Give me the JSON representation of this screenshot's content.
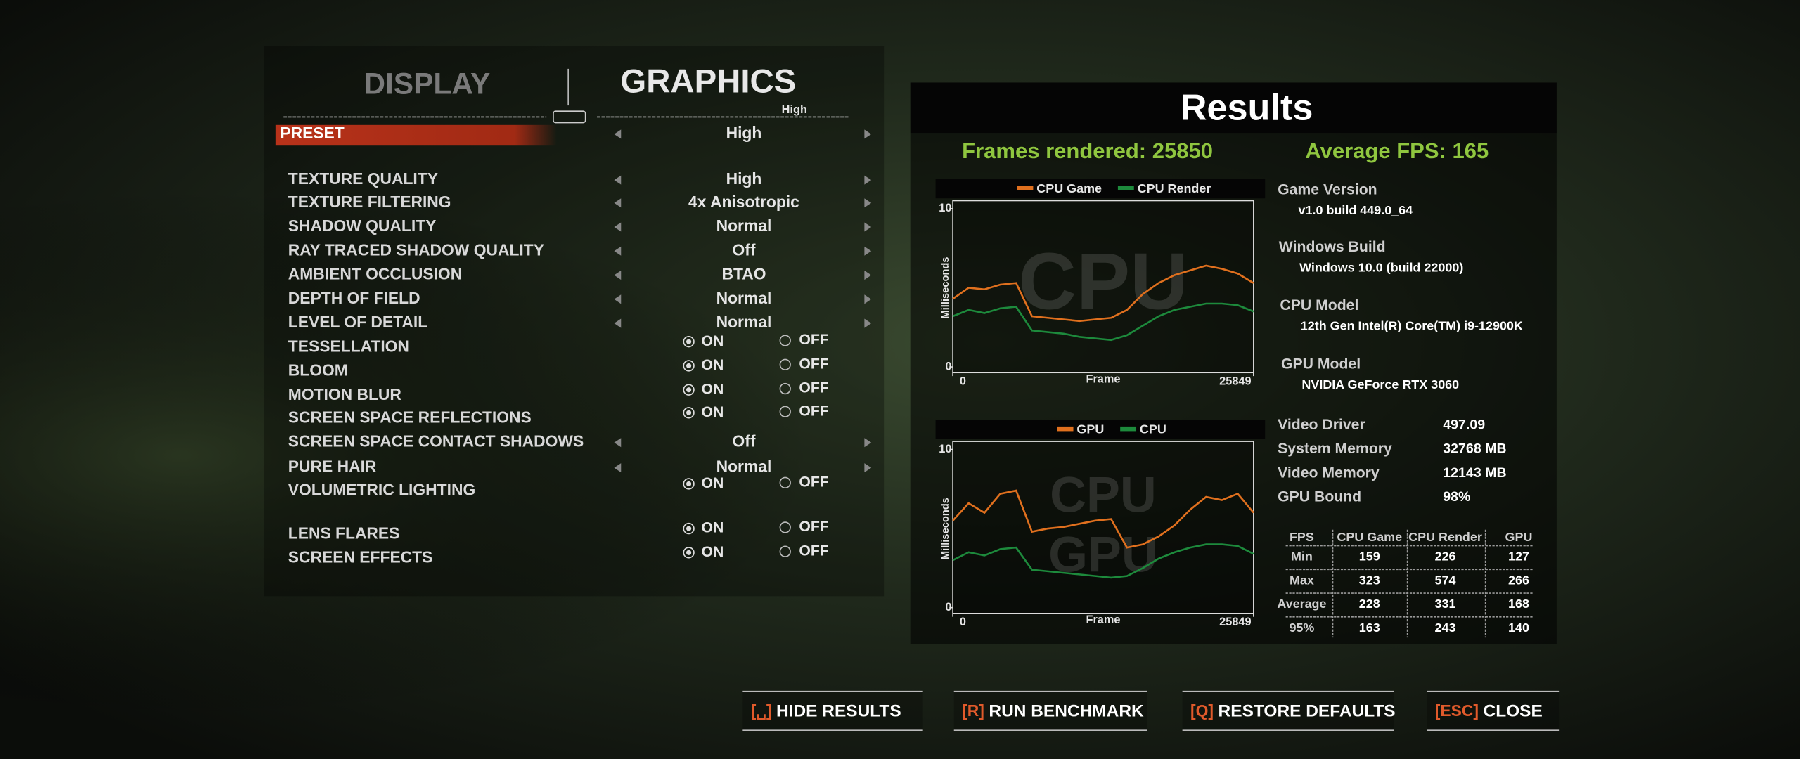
{
  "tabs": {
    "display": "DISPLAY",
    "graphics": "GRAPHICS",
    "graphics_preset": "High"
  },
  "settings": [
    {
      "label": "PRESET",
      "value": "High"
    },
    {
      "label": "TEXTURE QUALITY",
      "value": "High"
    },
    {
      "label": "TEXTURE FILTERING",
      "value": "4x Anisotropic"
    },
    {
      "label": "SHADOW QUALITY",
      "value": "Normal"
    },
    {
      "label": "RAY TRACED SHADOW QUALITY",
      "value": "Off"
    },
    {
      "label": "AMBIENT OCCLUSION",
      "value": "BTAO"
    },
    {
      "label": "DEPTH OF FIELD",
      "value": "Normal"
    },
    {
      "label": "LEVEL OF DETAIL",
      "value": "Normal"
    },
    {
      "label": "TESSELLATION",
      "on": "ON",
      "off": "OFF"
    },
    {
      "label": "BLOOM",
      "on": "ON",
      "off": "OFF"
    },
    {
      "label": "MOTION BLUR",
      "on": "ON",
      "off": "OFF"
    },
    {
      "label": "SCREEN SPACE REFLECTIONS",
      "on": "ON",
      "off": "OFF"
    },
    {
      "label": "SCREEN SPACE CONTACT SHADOWS",
      "value": "Off"
    },
    {
      "label": "PURE HAIR",
      "value": "Normal"
    },
    {
      "label": "VOLUMETRIC LIGHTING",
      "on": "ON",
      "off": "OFF"
    },
    {
      "label": "LENS FLARES",
      "on": "ON",
      "off": "OFF"
    },
    {
      "label": "SCREEN EFFECTS",
      "on": "ON",
      "off": "OFF"
    }
  ],
  "results": {
    "title": "Results",
    "frames_rendered": "Frames rendered: 25850",
    "average_fps": "Average FPS: 165",
    "charts": [
      {
        "type": "line",
        "watermark": [
          "CPU"
        ],
        "x_label": "Frame",
        "y_label": "Milliseconds",
        "xlim": [
          0,
          25849
        ],
        "ylim": [
          0,
          10
        ],
        "xticks": [
          0,
          25849
        ],
        "yticks": [
          0,
          10
        ],
        "x": [
          0,
          1360,
          2721,
          4082,
          5442,
          6803,
          8163,
          9524,
          10884,
          12245,
          13605,
          14966,
          16326,
          17687,
          19047,
          20408,
          21768,
          23129,
          24489,
          25849
        ],
        "series": [
          {
            "name": "CPU Game",
            "color": "#e0701e",
            "values": [
              4.3,
              5.0,
              4.9,
              5.2,
              5.3,
              3.2,
              3.1,
              3.0,
              2.9,
              3.0,
              3.1,
              3.6,
              4.6,
              5.3,
              5.8,
              6.1,
              6.4,
              6.2,
              5.9,
              5.3
            ]
          },
          {
            "name": "CPU Render",
            "color": "#1d8a3c",
            "values": [
              3.2,
              3.6,
              3.4,
              3.7,
              3.8,
              2.3,
              2.2,
              2.1,
              1.9,
              1.8,
              1.7,
              2.0,
              2.6,
              3.2,
              3.6,
              3.8,
              4.0,
              4.0,
              3.9,
              3.5
            ]
          }
        ]
      },
      {
        "type": "line",
        "watermark": [
          "CPU",
          "GPU"
        ],
        "x_label": "Frame",
        "y_label": "Milliseconds",
        "xlim": [
          0,
          25849
        ],
        "ylim": [
          0,
          10
        ],
        "xticks": [
          0,
          25849
        ],
        "yticks": [
          0,
          10
        ],
        "x": [
          0,
          1360,
          2721,
          4082,
          5442,
          6803,
          8163,
          9524,
          10884,
          12245,
          13605,
          14966,
          16326,
          17687,
          19047,
          20408,
          21768,
          23129,
          24489,
          25849
        ],
        "series": [
          {
            "name": "GPU",
            "color": "#e0701e",
            "values": [
              5.5,
              6.6,
              6.0,
              7.2,
              7.4,
              4.8,
              5.0,
              5.1,
              5.3,
              5.5,
              5.6,
              3.8,
              4.0,
              4.5,
              5.2,
              6.2,
              7.0,
              6.8,
              7.2,
              6.0
            ]
          },
          {
            "name": "CPU",
            "color": "#1d8a3c",
            "values": [
              3.0,
              3.5,
              3.3,
              3.7,
              3.8,
              2.4,
              2.3,
              2.2,
              2.1,
              2.0,
              1.9,
              2.0,
              2.5,
              3.1,
              3.5,
              3.8,
              4.0,
              4.0,
              3.9,
              3.4
            ]
          }
        ]
      }
    ],
    "info": [
      {
        "label": "Game Version",
        "value": "v1.0 build 449.0_64"
      },
      {
        "label": "Windows Build",
        "value": "Windows 10.0 (build 22000)"
      },
      {
        "label": "CPU Model",
        "value": "12th Gen Intel(R) Core(TM) i9-12900K"
      },
      {
        "label": "GPU Model",
        "value": "NVIDIA GeForce RTX 3060"
      }
    ],
    "stats": [
      {
        "label": "Video Driver",
        "value": "497.09"
      },
      {
        "label": "System Memory",
        "value": "32768 MB"
      },
      {
        "label": "Video Memory",
        "value": "12143 MB"
      },
      {
        "label": "GPU Bound",
        "value": "98%"
      }
    ],
    "table": {
      "header": [
        "FPS",
        "CPU Game",
        "CPU Render",
        "GPU"
      ],
      "rows": [
        [
          "Min",
          159,
          226,
          127
        ],
        [
          "Max",
          323,
          574,
          266
        ],
        [
          "Average",
          228,
          331,
          168
        ],
        [
          "95%",
          163,
          243,
          140
        ]
      ]
    }
  },
  "buttons": [
    {
      "key": "[␣]",
      "label": "HIDE RESULTS"
    },
    {
      "key": "[R]",
      "label": "RUN BENCHMARK"
    },
    {
      "key": "[Q]",
      "label": "RESTORE DEFAULTS"
    },
    {
      "key": "[ESC]",
      "label": "CLOSE"
    }
  ]
}
